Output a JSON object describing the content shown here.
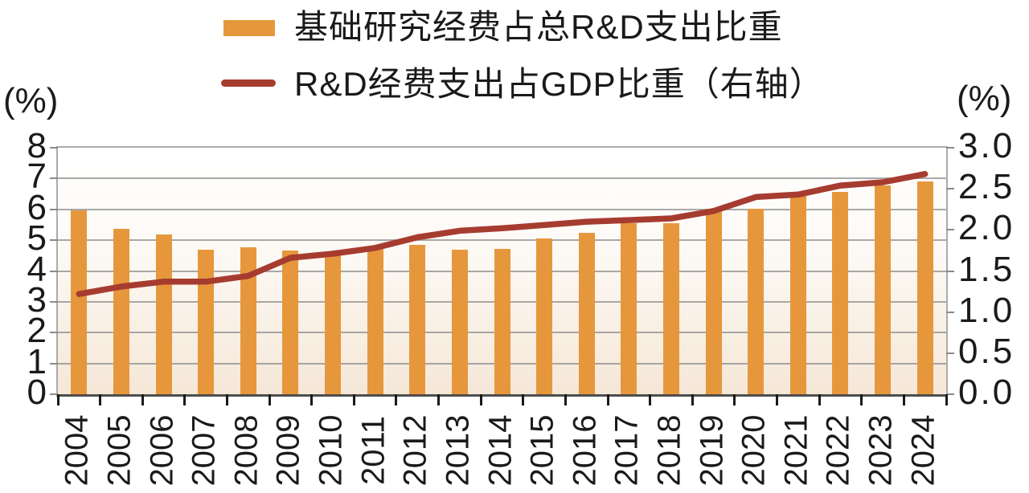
{
  "legend": {
    "items": [
      {
        "label": "基础研究经费占总R&D支出比重",
        "marker": "bar-swatch",
        "color": "#E6973C"
      },
      {
        "label": "R&D经费支出占GDP比重（右轴）",
        "marker": "line-swatch",
        "color": "#A63C30"
      }
    ]
  },
  "left_axis": {
    "unit": "(%)",
    "min": 0,
    "max": 8,
    "tick_labels": [
      "0",
      "1",
      "2",
      "3",
      "4",
      "5",
      "6",
      "7",
      "8"
    ]
  },
  "right_axis": {
    "unit": "(%)",
    "min": 0,
    "max": 3,
    "tick_labels": [
      "0.0",
      "0.5",
      "1.0",
      "1.5",
      "2.0",
      "2.5",
      "3.0"
    ]
  },
  "chart_data": {
    "type": "bar+line",
    "title": "",
    "categories": [
      "2004",
      "2005",
      "2006",
      "2007",
      "2008",
      "2009",
      "2010",
      "2011",
      "2012",
      "2013",
      "2014",
      "2015",
      "2016",
      "2017",
      "2018",
      "2019",
      "2020",
      "2021",
      "2022",
      "2023",
      "2024"
    ],
    "series": [
      {
        "name": "基础研究经费占总R&D支出比重",
        "type": "bar",
        "axis": "left",
        "color": "#E6973C",
        "values": [
          5.96,
          5.36,
          5.19,
          4.7,
          4.78,
          4.66,
          4.59,
          4.74,
          4.84,
          4.68,
          4.71,
          5.05,
          5.25,
          5.54,
          5.54,
          6.03,
          6.01,
          6.5,
          6.57,
          6.77,
          6.91
        ]
      },
      {
        "name": "R&D经费支出占GDP比重（右轴）",
        "type": "line",
        "axis": "right",
        "color": "#A63C30",
        "values": [
          1.22,
          1.31,
          1.37,
          1.37,
          1.44,
          1.66,
          1.71,
          1.78,
          1.91,
          1.99,
          2.02,
          2.06,
          2.1,
          2.12,
          2.14,
          2.23,
          2.4,
          2.43,
          2.54,
          2.58,
          2.68
        ]
      }
    ],
    "left_ylim": [
      0,
      8
    ],
    "right_ylim": [
      0,
      3
    ],
    "grid": "horizontal-only",
    "legend_position": "top-center"
  },
  "colors": {
    "bar": "#E6973C",
    "line": "#A63C30",
    "gridline": "#8C8C8C",
    "plot_border": "#ABABAB",
    "axis_line": "#4D4D4D",
    "text": "#1A1A1A",
    "plot_bg_top": "#FFFFFF",
    "plot_bg_bottom": "#F5E7D8"
  }
}
